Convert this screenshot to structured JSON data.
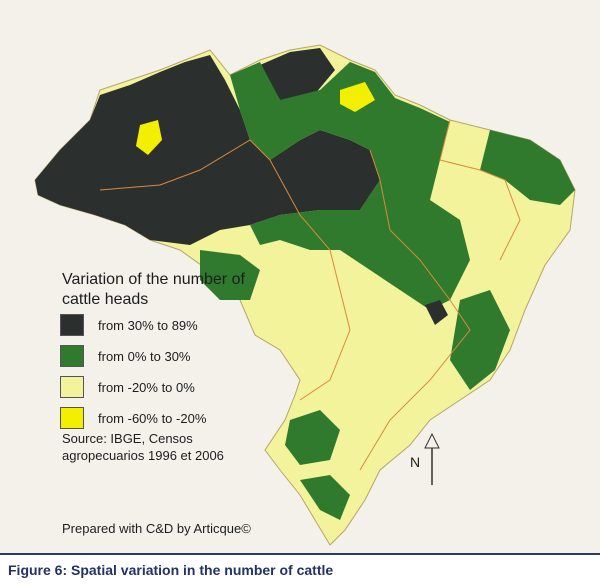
{
  "map": {
    "legend": {
      "title": "Variation of the number of cattle heads",
      "items": [
        {
          "label": "from 30% to 89%",
          "color": "#2b302f"
        },
        {
          "label": "from 0% to 30%",
          "color": "#2f7a2c"
        },
        {
          "label": "from -20% to 0%",
          "color": "#f3f39c"
        },
        {
          "label": "from -60% to -20%",
          "color": "#f2f000"
        }
      ]
    },
    "source": "Source: IBGE, Censos agropecuarios 1996 et 2006",
    "north": "N",
    "credit": "Prepared with C&D by Articque©",
    "caption": "Figure 6: Spatial variation in the number of cattle"
  }
}
